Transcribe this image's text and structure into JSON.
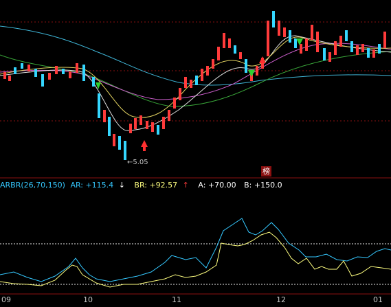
{
  "indicator": {
    "name": "ARBR(26,70,150)",
    "ar_label": "AR: +115.4",
    "ar_arrow": "↓",
    "br_label": "BR: +92.57",
    "br_arrow": "↑",
    "a_label": "A: +70.00",
    "b_label": "B: +150.0"
  },
  "price_panel": {
    "low_marker": "←5.05",
    "rank_badge": "榜"
  },
  "dates": [
    "09",
    "10",
    "11",
    "12",
    "01"
  ],
  "colors": {
    "background": "#000000",
    "up": "#ff3b3b",
    "down": "#35d7ff",
    "ar": "#35c8ff",
    "br": "#ffff80",
    "grid": "#8b1010"
  }
}
